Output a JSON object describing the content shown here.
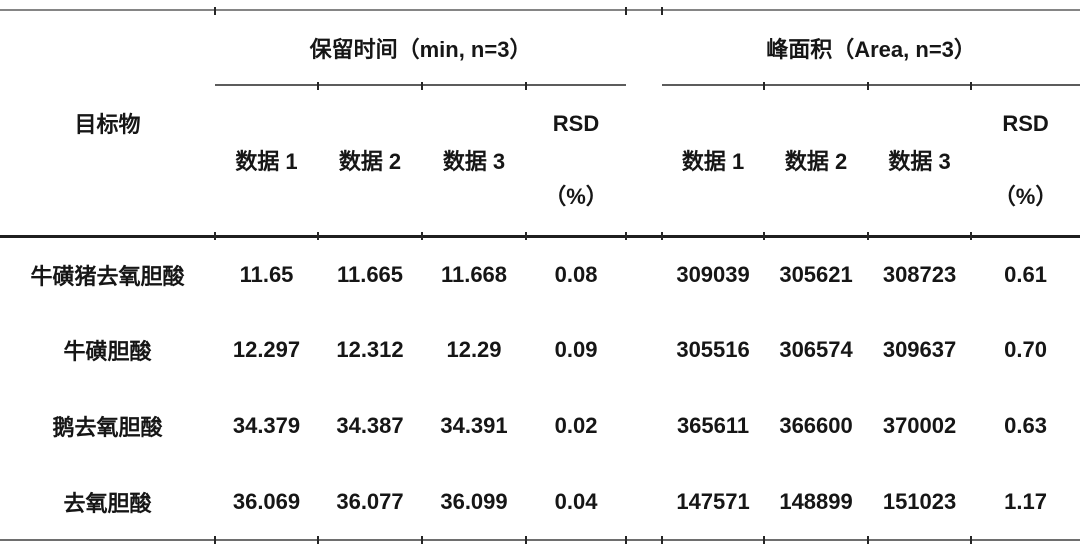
{
  "table": {
    "target_header": "目标物",
    "group1": {
      "label": "保留时间（min, n=3）",
      "sub": [
        "数据 1",
        "数据 2",
        "数据 3"
      ],
      "rsd": "RSD",
      "rsd_unit": "（%）"
    },
    "group2": {
      "label": "峰面积（Area, n=3）",
      "sub": [
        "数据 1",
        "数据 2",
        "数据 3"
      ],
      "rsd": "RSD",
      "rsd_unit": "（%）"
    },
    "rows": [
      {
        "name": "牛磺猪去氧胆酸",
        "rt": [
          "11.65",
          "11.665",
          "11.668"
        ],
        "rt_rsd": "0.08",
        "area": [
          "309039",
          "305621",
          "308723"
        ],
        "area_rsd": "0.61"
      },
      {
        "name": "牛磺胆酸",
        "rt": [
          "12.297",
          "12.312",
          "12.29"
        ],
        "rt_rsd": "0.09",
        "area": [
          "305516",
          "306574",
          "309637"
        ],
        "area_rsd": "0.70"
      },
      {
        "name": "鹅去氧胆酸",
        "rt": [
          "34.379",
          "34.387",
          "34.391"
        ],
        "rt_rsd": "0.02",
        "area": [
          "365611",
          "366600",
          "370002"
        ],
        "area_rsd": "0.63"
      },
      {
        "name": "去氧胆酸",
        "rt": [
          "36.069",
          "36.077",
          "36.099"
        ],
        "rt_rsd": "0.04",
        "area": [
          "147571",
          "148899",
          "151023"
        ],
        "area_rsd": "1.17"
      }
    ]
  }
}
